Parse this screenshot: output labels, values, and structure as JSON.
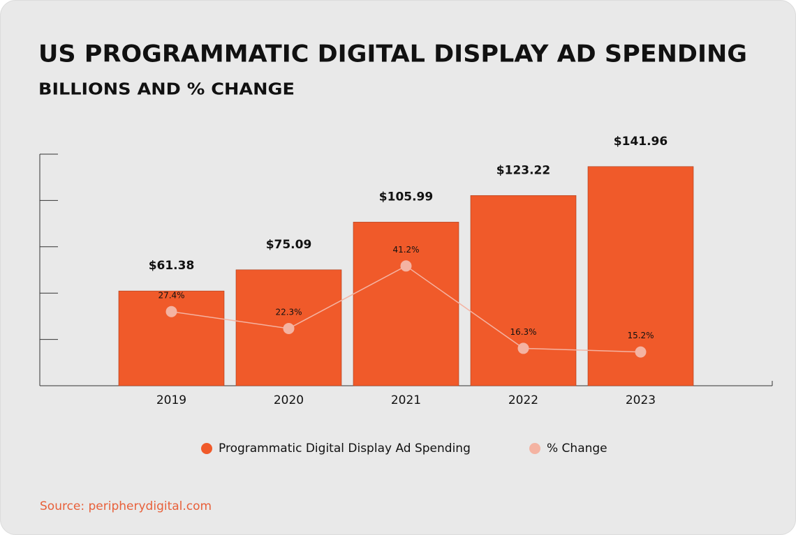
{
  "chart_data": {
    "type": "bar",
    "title": "US PROGRAMMATIC DIGITAL DISPLAY AD SPENDING",
    "subtitle": "BILLIONS AND % CHANGE",
    "categories": [
      "2019",
      "2020",
      "2021",
      "2022",
      "2023"
    ],
    "series": [
      {
        "name": "Programmatic Digital Display Ad Spending",
        "color": "#f05a2a",
        "values": [
          61.38,
          75.09,
          105.99,
          123.22,
          141.96
        ],
        "value_labels": [
          "$61.38",
          "$75.09",
          "$105.99",
          "$123.22",
          "$141.96"
        ]
      },
      {
        "name": "% Change",
        "type": "line",
        "axis": "y2",
        "color": "#f4b3a2",
        "values": [
          27.4,
          22.3,
          41.2,
          16.3,
          15.2
        ],
        "value_labels": [
          "27.4%",
          "22.3%",
          "41.2%",
          "16.3%",
          "15.2%"
        ]
      }
    ],
    "ylim": [
      0,
      150
    ],
    "yticks": [
      0,
      30,
      60,
      90,
      120,
      150
    ],
    "y2lim": [
      5,
      75
    ],
    "source": "Source: peripherydigital.com"
  }
}
